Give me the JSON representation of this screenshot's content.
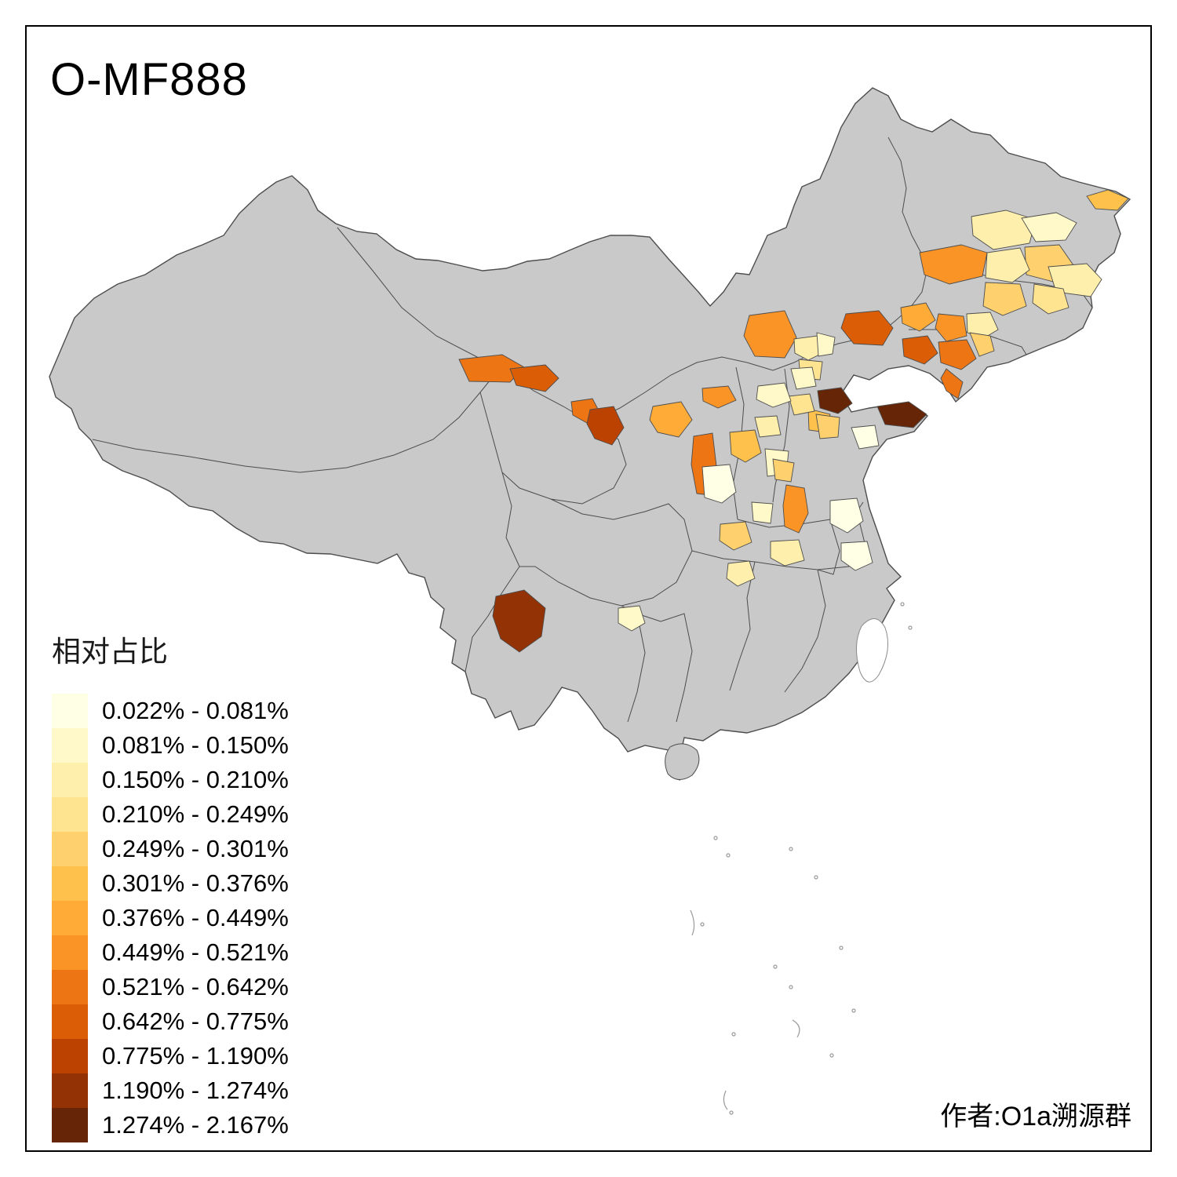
{
  "title": "O-MF888",
  "legend": {
    "title": "相对占比",
    "items": [
      {
        "label": "0.022% - 0.081%"
      },
      {
        "label": "0.081% - 0.150%"
      },
      {
        "label": "0.150% - 0.210%"
      },
      {
        "label": "0.210% - 0.249%"
      },
      {
        "label": "0.249% - 0.301%"
      },
      {
        "label": "0.301% - 0.376%"
      },
      {
        "label": "0.376% - 0.449%"
      },
      {
        "label": "0.449% - 0.521%"
      },
      {
        "label": "0.521% - 0.642%"
      },
      {
        "label": "0.642% - 0.775%"
      },
      {
        "label": "0.775% - 1.190%"
      },
      {
        "label": "1.190% - 1.274%"
      },
      {
        "label": "1.274% - 2.167%"
      }
    ],
    "colors": [
      "#FFFFE5",
      "#FFF9C9",
      "#FEF0AC",
      "#FEE391",
      "#FED16E",
      "#FEC24C",
      "#FEAB38",
      "#FB9427",
      "#ED7514",
      "#DB5E06",
      "#BC4202",
      "#933204",
      "#662506"
    ]
  },
  "map": {
    "base_color": "#C9C9C9",
    "border_color": "#4D4D4D",
    "no_data_color": "#FFFFFF"
  },
  "attribution": "作者:O1a溯源群"
}
